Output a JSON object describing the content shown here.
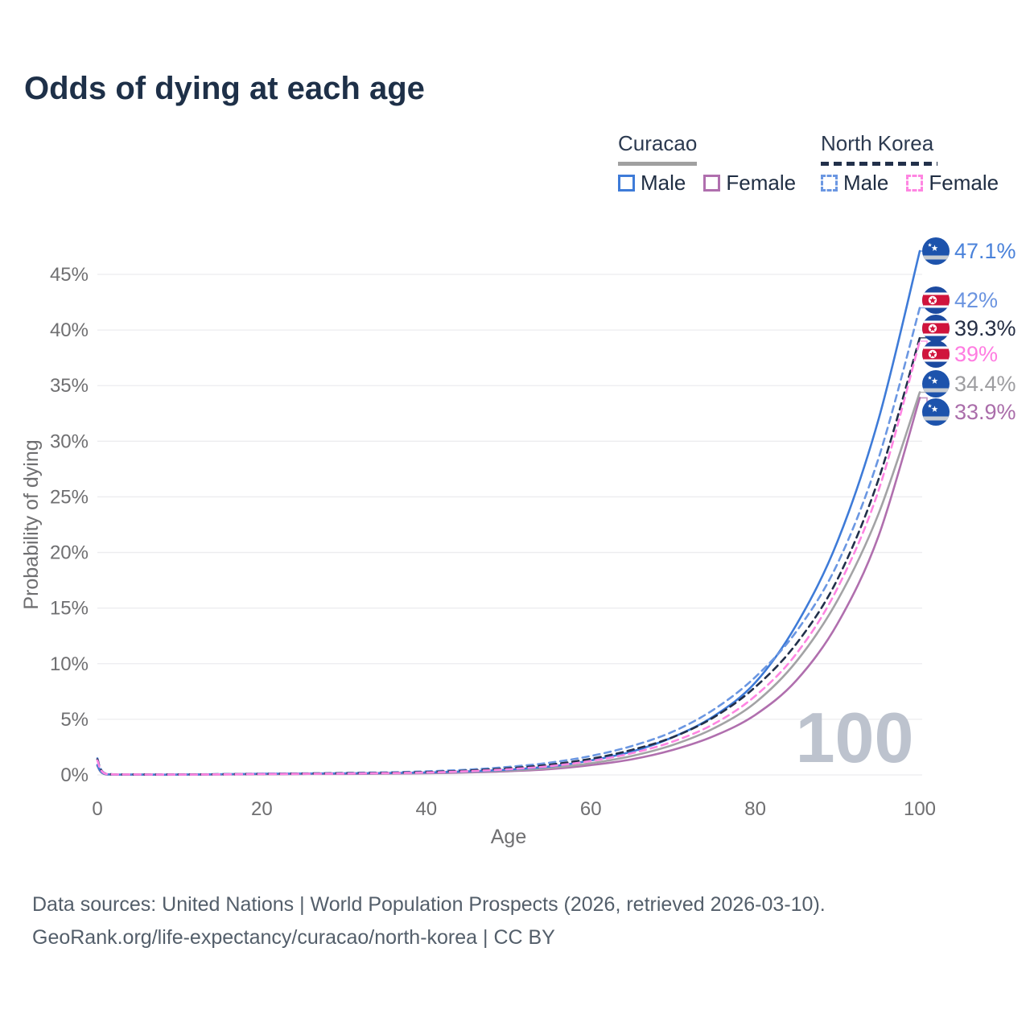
{
  "title": "Odds of dying at each age",
  "legend": {
    "groups": [
      {
        "label": "Curacao",
        "underline_color": "#a0a0a0",
        "underline_style": "solid",
        "items": [
          {
            "label": "Male",
            "color": "#3e7bd8",
            "dashed": false
          },
          {
            "label": "Female",
            "color": "#b06fae",
            "dashed": false
          }
        ]
      },
      {
        "label": "North Korea",
        "underline_color": "#22304a",
        "underline_style": "dashed",
        "items": [
          {
            "label": "Male",
            "color": "#6b97e2",
            "dashed": true
          },
          {
            "label": "Female",
            "color": "#ff85e2",
            "dashed": true
          }
        ]
      }
    ]
  },
  "watermark": "100",
  "footer": {
    "line1": "Data sources: United Nations | World Population Prospects (2026, retrieved 2026-03-10).",
    "line2": "GeoRank.org/life-expectancy/curacao/north-korea | CC BY"
  },
  "chart_data": {
    "type": "line",
    "title": "Odds of dying at each age",
    "xlabel": "Age",
    "ylabel": "Probability of dying",
    "xlim": [
      0,
      100
    ],
    "ylim": [
      0,
      45
    ],
    "xticks": [
      0,
      20,
      40,
      60,
      80,
      100
    ],
    "yticks": [
      0,
      5,
      10,
      15,
      20,
      25,
      30,
      35,
      40,
      45
    ],
    "ytick_suffix": "%",
    "grid": true,
    "legend_position": "top-right",
    "x": [
      0,
      1,
      5,
      10,
      15,
      20,
      25,
      30,
      35,
      40,
      45,
      50,
      55,
      60,
      65,
      70,
      75,
      80,
      85,
      90,
      95,
      100
    ],
    "series": [
      {
        "name": "Curacao Male",
        "country": "Curacao",
        "sex": "male",
        "color": "#3e7bd8",
        "label_color": "#4a82da",
        "dashed": false,
        "flag": "curacao",
        "end_label": "47.1%",
        "values": [
          0.9,
          0.07,
          0.03,
          0.03,
          0.06,
          0.1,
          0.12,
          0.14,
          0.17,
          0.22,
          0.32,
          0.48,
          0.75,
          1.3,
          2.1,
          3.4,
          5.3,
          8.3,
          13.5,
          21.0,
          32.0,
          47.1
        ]
      },
      {
        "name": "North Korea Male",
        "country": "North Korea",
        "sex": "male",
        "color": "#6b97e2",
        "label_color": "#6b94e0",
        "dashed": true,
        "flag": "north-korea",
        "end_label": "42%",
        "values": [
          1.5,
          0.12,
          0.05,
          0.04,
          0.07,
          0.11,
          0.14,
          0.18,
          0.23,
          0.32,
          0.47,
          0.72,
          1.1,
          1.7,
          2.6,
          3.9,
          5.9,
          8.8,
          12.9,
          19.0,
          28.5,
          42.0
        ]
      },
      {
        "name": "North Korea",
        "country": "North Korea",
        "sex": "both",
        "color": "#22304a",
        "label_color": "#252e44",
        "dashed": true,
        "flag": "north-korea",
        "end_label": "39.3%",
        "values": [
          1.4,
          0.11,
          0.04,
          0.04,
          0.06,
          0.09,
          0.12,
          0.15,
          0.19,
          0.26,
          0.39,
          0.6,
          0.92,
          1.45,
          2.25,
          3.4,
          5.2,
          7.9,
          11.8,
          17.6,
          26.6,
          39.3
        ]
      },
      {
        "name": "North Korea Female",
        "country": "North Korea",
        "sex": "female",
        "color": "#ff85e2",
        "label_color": "#ff7ce1",
        "dashed": true,
        "flag": "north-korea",
        "end_label": "39%",
        "values": [
          1.3,
          0.1,
          0.04,
          0.03,
          0.05,
          0.08,
          0.1,
          0.12,
          0.16,
          0.22,
          0.33,
          0.51,
          0.79,
          1.25,
          1.95,
          3.0,
          4.6,
          7.1,
          10.9,
          16.8,
          25.6,
          39.0
        ]
      },
      {
        "name": "Curacao",
        "country": "Curacao",
        "sex": "both",
        "color": "#a3a3a5",
        "label_color": "#9d9da0",
        "dashed": false,
        "flag": "curacao",
        "end_label": "34.4%",
        "values": [
          0.85,
          0.06,
          0.03,
          0.02,
          0.05,
          0.08,
          0.1,
          0.12,
          0.14,
          0.18,
          0.27,
          0.4,
          0.62,
          1.05,
          1.7,
          2.7,
          4.2,
          6.5,
          10.2,
          15.7,
          23.5,
          34.4
        ]
      },
      {
        "name": "Curacao Female",
        "country": "Curacao",
        "sex": "female",
        "color": "#b06fae",
        "label_color": "#aa6daa",
        "dashed": false,
        "flag": "curacao",
        "end_label": "33.9%",
        "values": [
          0.8,
          0.05,
          0.02,
          0.02,
          0.04,
          0.06,
          0.08,
          0.09,
          0.11,
          0.15,
          0.22,
          0.33,
          0.52,
          0.88,
          1.4,
          2.25,
          3.5,
          5.4,
          8.5,
          13.6,
          21.5,
          33.9
        ]
      }
    ],
    "flag_colors": {
      "curacao_blue": "#1d53ac",
      "curacao_stripe": "#c6cbd1",
      "nk_blue": "#1c4aa0",
      "nk_red": "#d0143c",
      "nk_white": "#ffffff"
    },
    "axis_text_color": "#6f6f71",
    "grid_color": "#ececef",
    "watermark_color": "#bdc3ce"
  }
}
